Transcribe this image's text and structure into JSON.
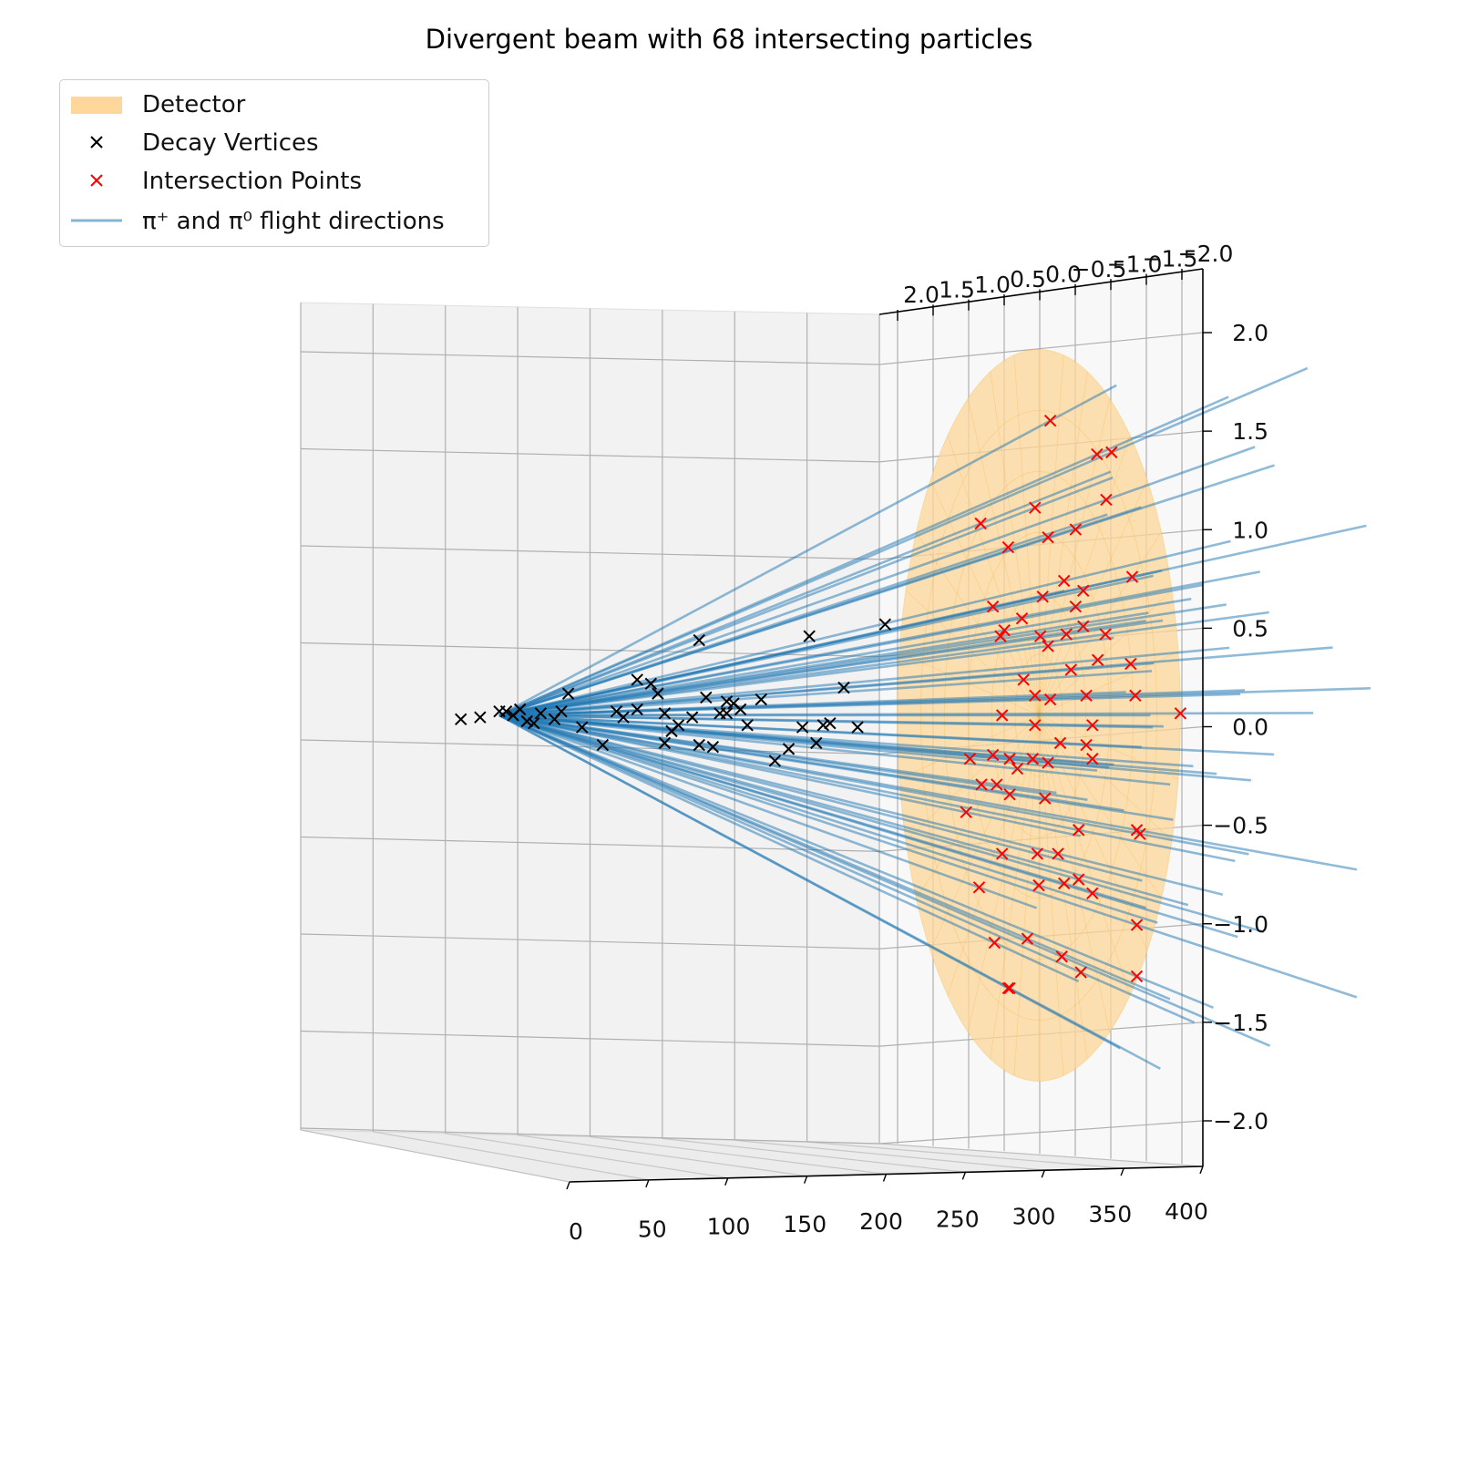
{
  "chart_data": {
    "type": "scatter3d",
    "title": "Divergent beam with 68 intersecting particles",
    "legend": {
      "placement": "upper-left",
      "entries": [
        {
          "label": "Detector",
          "kind": "patch",
          "color": "#fdd79a"
        },
        {
          "label": "Decay Vertices",
          "kind": "x-marker",
          "color": "#000000"
        },
        {
          "label": "Intersection Points",
          "kind": "x-marker",
          "color": "#ff0000"
        },
        {
          "label": "π⁺ and π⁰ flight directions",
          "kind": "line",
          "color": "#1f77b4"
        }
      ]
    },
    "axes": {
      "x": {
        "ticks": [
          "0",
          "50",
          "100",
          "150",
          "200",
          "250",
          "300",
          "350",
          "400"
        ],
        "range": [
          0,
          400
        ]
      },
      "y": {
        "ticks": [
          "2.0",
          "1.5",
          "1.0",
          "0.5",
          "0.0",
          "−0.5",
          "−1.0",
          "−1.5",
          "−2.0"
        ],
        "range": [
          2,
          -2
        ]
      },
      "z": {
        "ticks": [
          "2.0",
          "1.5",
          "1.0",
          "0.5",
          "0.0",
          "−0.5",
          "−1.0",
          "−1.5",
          "−2.0"
        ],
        "range": [
          -2.1,
          2.1
        ]
      },
      "grid": true
    },
    "detector": {
      "shape": "disc",
      "x_position": 400,
      "radius": 1.85,
      "color": "#fdd79a"
    },
    "beam_origin": {
      "x": 0,
      "y": 0,
      "z": 0
    },
    "intersection_points": [
      [
        0.15,
        1.49
      ],
      [
        0.76,
        1.32
      ],
      [
        0.95,
        1.33
      ],
      [
        -0.05,
        1.05
      ],
      [
        0.88,
        1.09
      ],
      [
        0.48,
        0.94
      ],
      [
        0.12,
        0.9
      ],
      [
        -0.76,
        0.97
      ],
      [
        1.22,
        0.7
      ],
      [
        -0.4,
        0.85
      ],
      [
        0.33,
        0.68
      ],
      [
        0.58,
        0.63
      ],
      [
        0.05,
        0.6
      ],
      [
        0.48,
        0.55
      ],
      [
        -0.6,
        0.55
      ],
      [
        0.58,
        0.45
      ],
      [
        -0.22,
        0.49
      ],
      [
        0.36,
        0.41
      ],
      [
        0.87,
        0.41
      ],
      [
        -0.45,
        0.43
      ],
      [
        0.02,
        0.4
      ],
      [
        -0.5,
        0.4
      ],
      [
        0.12,
        0.35
      ],
      [
        0.77,
        0.28
      ],
      [
        1.2,
        0.26
      ],
      [
        0.42,
        0.23
      ],
      [
        -0.2,
        0.18
      ],
      [
        0.15,
        0.08
      ],
      [
        -0.05,
        0.1
      ],
      [
        0.62,
        0.1
      ],
      [
        1.26,
        0.1
      ],
      [
        1.85,
        0.01
      ],
      [
        -0.48,
        0.0
      ],
      [
        0.7,
        -0.05
      ],
      [
        -0.05,
        -0.05
      ],
      [
        0.62,
        -0.15
      ],
      [
        0.28,
        -0.14
      ],
      [
        -0.6,
        -0.2
      ],
      [
        -0.08,
        -0.22
      ],
      [
        0.7,
        -0.22
      ],
      [
        -0.9,
        -0.22
      ],
      [
        0.12,
        -0.24
      ],
      [
        -0.38,
        -0.22
      ],
      [
        -0.28,
        -0.27
      ],
      [
        -0.55,
        -0.35
      ],
      [
        -0.75,
        -0.35
      ],
      [
        -0.38,
        -0.4
      ],
      [
        0.08,
        -0.42
      ],
      [
        -0.95,
        -0.49
      ],
      [
        1.28,
        -0.58
      ],
      [
        1.32,
        -0.6
      ],
      [
        0.52,
        -0.58
      ],
      [
        -0.48,
        -0.7
      ],
      [
        -0.02,
        -0.7
      ],
      [
        0.25,
        -0.7
      ],
      [
        -0.78,
        -0.87
      ],
      [
        0.0,
        -0.86
      ],
      [
        0.52,
        -0.83
      ],
      [
        0.33,
        -0.85
      ],
      [
        0.7,
        -0.9
      ],
      [
        1.28,
        -1.06
      ],
      [
        -0.58,
        -1.15
      ],
      [
        -0.15,
        -1.13
      ],
      [
        0.3,
        -1.22
      ],
      [
        0.55,
        -1.3
      ],
      [
        -0.38,
        -1.38
      ],
      [
        1.28,
        -1.32
      ],
      [
        -0.4,
        -1.38
      ]
    ],
    "decay_vertices": [
      [
        -0.04,
        -0.02
      ],
      [
        -0.02,
        -0.01
      ],
      [
        0.0,
        0.02
      ],
      [
        0.01,
        0.02
      ],
      [
        0.02,
        0.0
      ],
      [
        0.03,
        0.03
      ],
      [
        0.04,
        -0.03
      ],
      [
        0.05,
        -0.04
      ],
      [
        0.06,
        0.01
      ],
      [
        0.08,
        -0.02
      ],
      [
        0.09,
        0.02
      ],
      [
        0.1,
        0.11
      ],
      [
        0.12,
        -0.06
      ],
      [
        0.15,
        -0.15
      ],
      [
        0.17,
        0.02
      ],
      [
        0.18,
        -0.01
      ],
      [
        0.2,
        0.18
      ],
      [
        0.2,
        0.03
      ],
      [
        0.22,
        0.16
      ],
      [
        0.23,
        0.11
      ],
      [
        0.24,
        0.01
      ],
      [
        0.24,
        -0.14
      ],
      [
        0.25,
        -0.08
      ],
      [
        0.26,
        -0.05
      ],
      [
        0.28,
        -0.01
      ],
      [
        0.29,
        -0.15
      ],
      [
        0.29,
        0.38
      ],
      [
        0.3,
        0.09
      ],
      [
        0.31,
        -0.16
      ],
      [
        0.32,
        0.01
      ],
      [
        0.33,
        0.07
      ],
      [
        0.33,
        0.01
      ],
      [
        0.34,
        0.06
      ],
      [
        0.35,
        0.03
      ],
      [
        0.36,
        -0.05
      ],
      [
        0.38,
        0.08
      ],
      [
        0.4,
        -0.23
      ],
      [
        0.42,
        -0.17
      ],
      [
        0.44,
        -0.06
      ],
      [
        0.45,
        0.4
      ],
      [
        0.46,
        -0.14
      ],
      [
        0.47,
        -0.05
      ],
      [
        0.48,
        -0.04
      ],
      [
        0.5,
        0.14
      ],
      [
        0.52,
        -0.06
      ],
      [
        0.56,
        0.46
      ]
    ]
  }
}
